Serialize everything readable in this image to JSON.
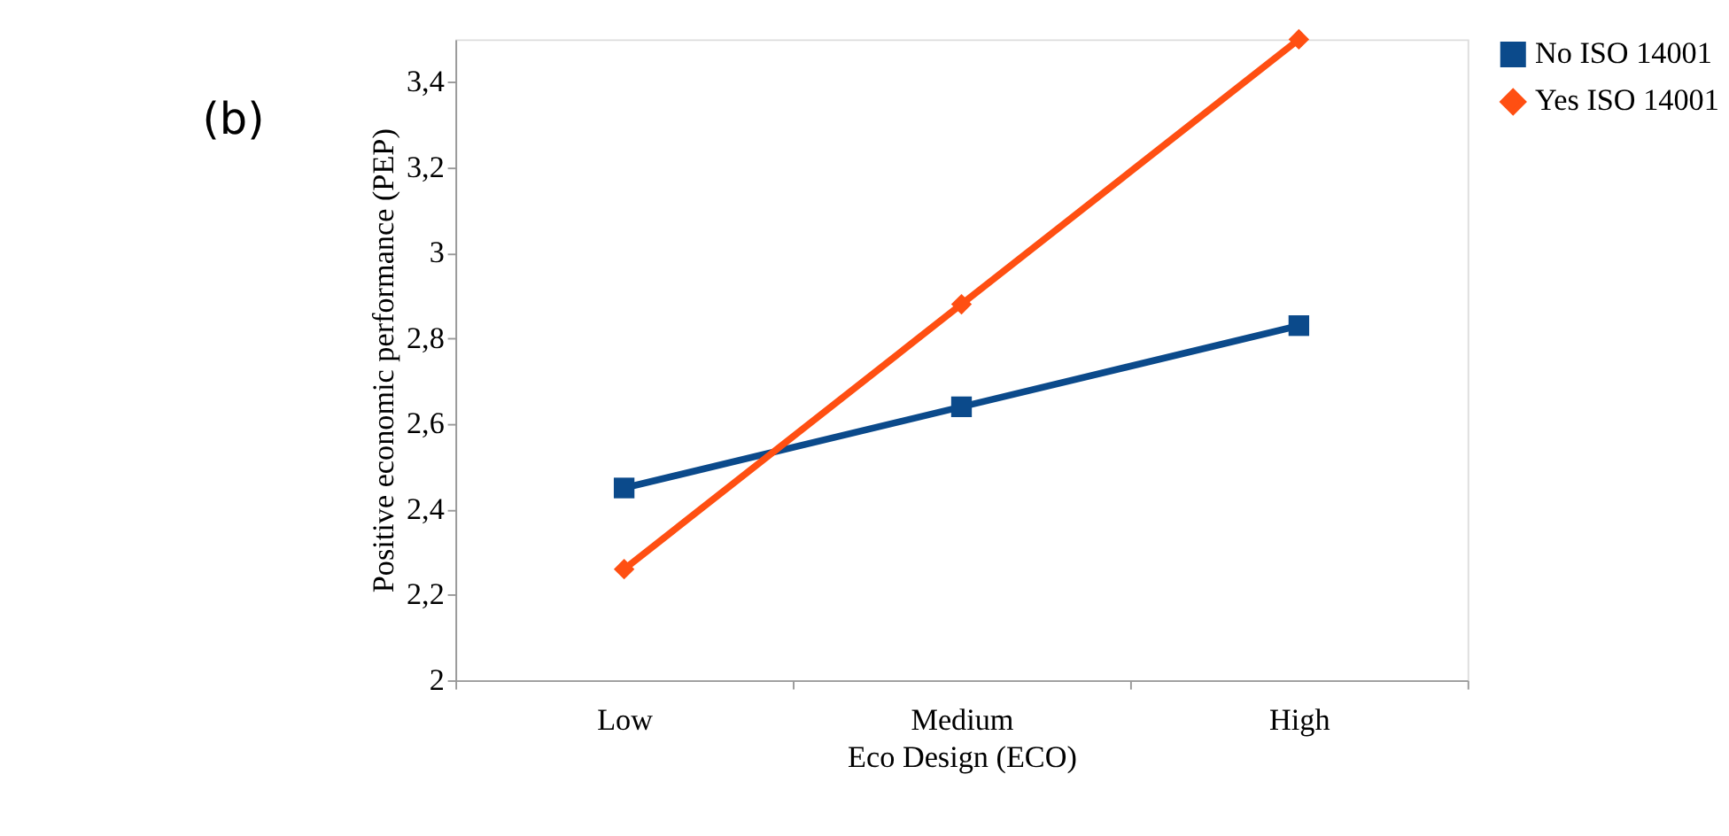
{
  "chart_data": {
    "type": "line",
    "xlabel": "Eco Design (ECO)",
    "ylabel": "Positive economic performance (PEP)",
    "annotations": [
      "(b)"
    ],
    "categories": [
      "Low",
      "Medium",
      "High"
    ],
    "series": [
      {
        "name": "No ISO 14001",
        "color": "#0b4a8b",
        "marker": "square",
        "values": [
          2.45,
          2.64,
          2.83
        ]
      },
      {
        "name": "Yes ISO 14001",
        "color": "#ff4f12",
        "marker": "diamond",
        "values": [
          2.26,
          2.88,
          3.5
        ]
      }
    ],
    "ylim": [
      2,
      3.5
    ],
    "yticks": [
      {
        "value": 2,
        "label": "2"
      },
      {
        "value": 2.2,
        "label": "2,2"
      },
      {
        "value": 2.4,
        "label": "2,4"
      },
      {
        "value": 2.6,
        "label": "2,6"
      },
      {
        "value": 2.8,
        "label": "2,8"
      },
      {
        "value": 3,
        "label": "3"
      },
      {
        "value": 3.2,
        "label": "3,2"
      },
      {
        "value": 3.4,
        "label": "3,4"
      }
    ],
    "grid": false,
    "legend": "right",
    "line_style": "solid"
  }
}
